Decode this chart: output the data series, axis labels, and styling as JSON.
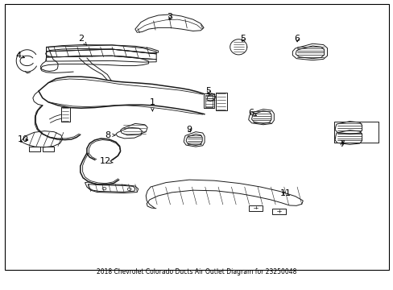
{
  "title": "2018 Chevrolet Colorado Ducts Air Outlet Diagram for 23250048",
  "bg_color": "#ffffff",
  "fig_width": 4.89,
  "fig_height": 3.6,
  "dpi": 100,
  "lw": 0.7,
  "lw_thick": 1.1,
  "color": "#1a1a1a",
  "labels": {
    "1": [
      0.385,
      0.64,
      0.385,
      0.605
    ],
    "2": [
      0.2,
      0.87,
      0.215,
      0.845
    ],
    "3": [
      0.43,
      0.95,
      0.43,
      0.93
    ],
    "4": [
      0.038,
      0.81,
      0.055,
      0.8
    ],
    "5a": [
      0.62,
      0.87,
      0.615,
      0.85
    ],
    "5b": [
      0.53,
      0.68,
      0.53,
      0.66
    ],
    "6a": [
      0.76,
      0.87,
      0.76,
      0.848
    ],
    "6b": [
      0.64,
      0.6,
      0.656,
      0.59
    ],
    "7": [
      0.876,
      0.488,
      0.876,
      0.505
    ],
    "8": [
      0.268,
      0.52,
      0.29,
      0.52
    ],
    "9": [
      0.48,
      0.54,
      0.487,
      0.522
    ],
    "10": [
      0.05,
      0.505,
      0.07,
      0.5
    ],
    "11": [
      0.73,
      0.308,
      0.714,
      0.318
    ],
    "12": [
      0.262,
      0.425,
      0.283,
      0.42
    ]
  }
}
